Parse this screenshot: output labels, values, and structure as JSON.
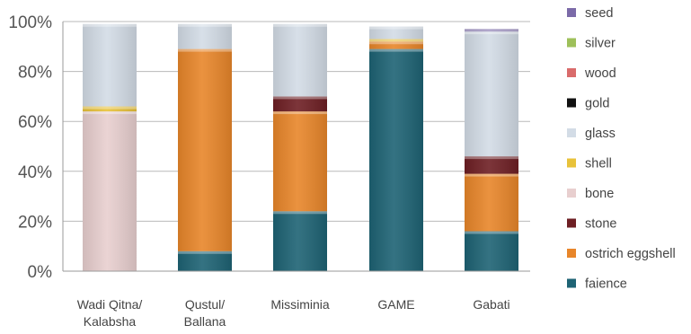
{
  "chart_data": {
    "type": "bar",
    "stacked": true,
    "percent": true,
    "ylim": [
      0,
      100
    ],
    "y_ticks": [
      "0%",
      "20%",
      "40%",
      "60%",
      "80%",
      "100%"
    ],
    "grid": true,
    "legend_position": "right",
    "categories": [
      [
        "Wadi Qitna/",
        "Kalabsha"
      ],
      [
        "Qustul/",
        "Ballana"
      ],
      [
        "Missiminia"
      ],
      [
        "GAME"
      ],
      [
        "Gabati"
      ]
    ],
    "series": [
      {
        "name": "faience",
        "color": "#1e6374",
        "values": [
          0,
          8,
          24,
          89,
          16
        ]
      },
      {
        "name": "ostrich eggshell",
        "color": "#e8862a",
        "values": [
          0,
          81,
          40,
          3,
          23
        ]
      },
      {
        "name": "stone",
        "color": "#6e1f24",
        "values": [
          0,
          0,
          6,
          0,
          7
        ]
      },
      {
        "name": "bone",
        "color": "#e8cfcf",
        "values": [
          64,
          0,
          0,
          0,
          0
        ]
      },
      {
        "name": "shell",
        "color": "#e8c23a",
        "values": [
          2,
          0,
          0,
          1,
          0
        ]
      },
      {
        "name": "glass",
        "color": "#d3dce6",
        "values": [
          33,
          10,
          29,
          5,
          50
        ]
      },
      {
        "name": "gold",
        "color": "#111111",
        "values": [
          0,
          0,
          0,
          0,
          0
        ]
      },
      {
        "name": "wood",
        "color": "#d96b6b",
        "values": [
          0,
          0,
          0,
          0,
          0
        ]
      },
      {
        "name": "silver",
        "color": "#9ec05a",
        "values": [
          0,
          0,
          0,
          0,
          0
        ]
      },
      {
        "name": "seed",
        "color": "#7b6aa8",
        "values": [
          0,
          0,
          0,
          0,
          1
        ]
      }
    ]
  }
}
